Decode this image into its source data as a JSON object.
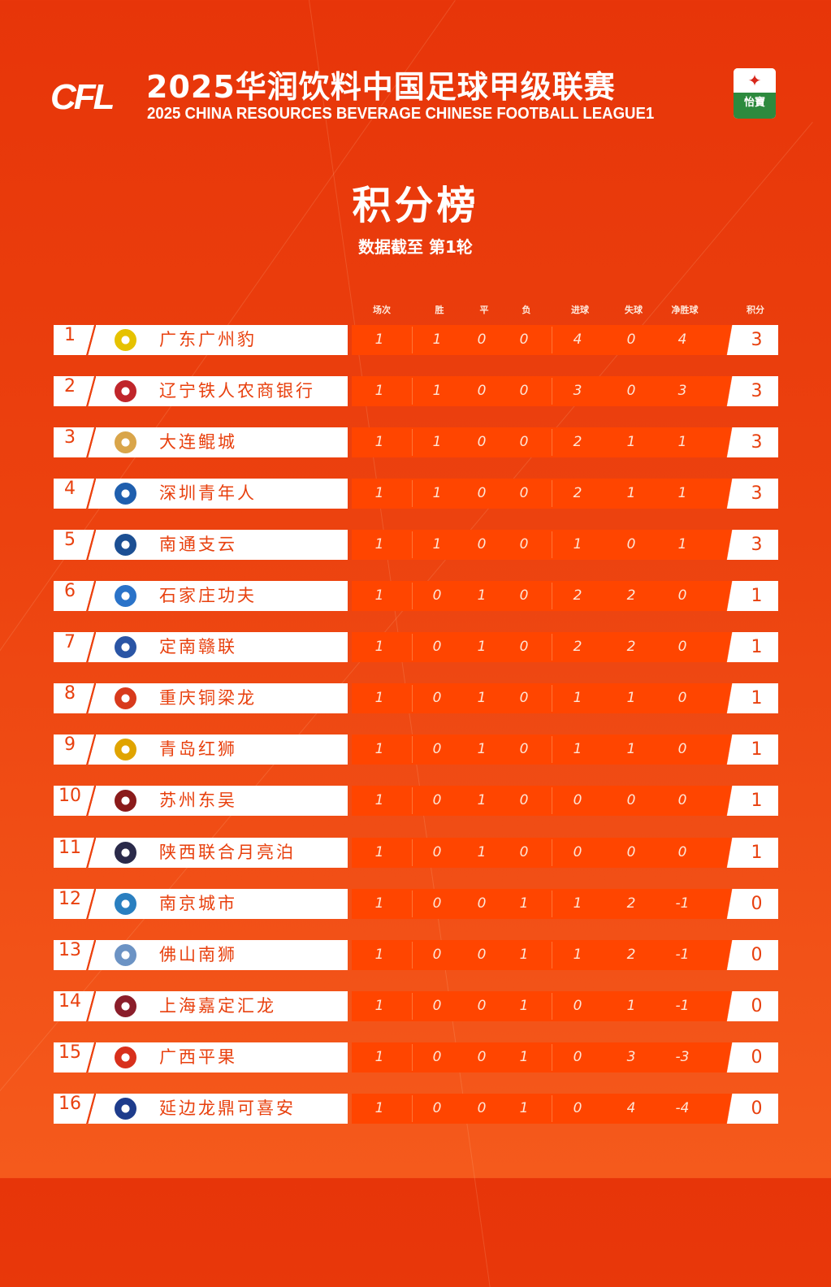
{
  "header": {
    "logo_text": "CFL",
    "title_cn": "2025华润饮料中国足球甲级联赛",
    "title_en": "2025 CHINA RESOURCES BEVERAGE CHINESE FOOTBALL LEAGUE1",
    "sponsor_text": "怡寶"
  },
  "page_title": "积分榜",
  "subtitle": "数据截至 第1轮",
  "columns": [
    "场次",
    "胜",
    "平",
    "负",
    "进球",
    "失球",
    "净胜球",
    "积分"
  ],
  "colors": {
    "background": "#e73509",
    "row_band": "#ff4500",
    "text_accent": "#e8400e"
  },
  "rows": [
    {
      "rank": "1",
      "team": "广东广州豹",
      "crest": "#e6c200",
      "played": "1",
      "w": "1",
      "d": "0",
      "l": "0",
      "gf": "4",
      "ga": "0",
      "gd": "4",
      "pts": "3"
    },
    {
      "rank": "2",
      "team": "辽宁铁人农商银行",
      "crest": "#c0262b",
      "played": "1",
      "w": "1",
      "d": "0",
      "l": "0",
      "gf": "3",
      "ga": "0",
      "gd": "3",
      "pts": "3"
    },
    {
      "rank": "3",
      "team": "大连鲲城",
      "crest": "#d9a54a",
      "played": "1",
      "w": "1",
      "d": "0",
      "l": "0",
      "gf": "2",
      "ga": "1",
      "gd": "1",
      "pts": "3"
    },
    {
      "rank": "4",
      "team": "深圳青年人",
      "crest": "#1f5fae",
      "played": "1",
      "w": "1",
      "d": "0",
      "l": "0",
      "gf": "2",
      "ga": "1",
      "gd": "1",
      "pts": "3"
    },
    {
      "rank": "5",
      "team": "南通支云",
      "crest": "#1c4f93",
      "played": "1",
      "w": "1",
      "d": "0",
      "l": "0",
      "gf": "1",
      "ga": "0",
      "gd": "1",
      "pts": "3"
    },
    {
      "rank": "6",
      "team": "石家庄功夫",
      "crest": "#2a73c9",
      "played": "1",
      "w": "0",
      "d": "1",
      "l": "0",
      "gf": "2",
      "ga": "2",
      "gd": "0",
      "pts": "1"
    },
    {
      "rank": "7",
      "team": "定南赣联",
      "crest": "#2a55a5",
      "played": "1",
      "w": "0",
      "d": "1",
      "l": "0",
      "gf": "2",
      "ga": "2",
      "gd": "0",
      "pts": "1"
    },
    {
      "rank": "8",
      "team": "重庆铜梁龙",
      "crest": "#d83a1c",
      "played": "1",
      "w": "0",
      "d": "1",
      "l": "0",
      "gf": "1",
      "ga": "1",
      "gd": "0",
      "pts": "1"
    },
    {
      "rank": "9",
      "team": "青岛红狮",
      "crest": "#e0a400",
      "played": "1",
      "w": "0",
      "d": "1",
      "l": "0",
      "gf": "1",
      "ga": "1",
      "gd": "0",
      "pts": "1"
    },
    {
      "rank": "10",
      "team": "苏州东吴",
      "crest": "#8a1b1b",
      "played": "1",
      "w": "0",
      "d": "1",
      "l": "0",
      "gf": "0",
      "ga": "0",
      "gd": "0",
      "pts": "1"
    },
    {
      "rank": "11",
      "team": "陕西联合月亮泊",
      "crest": "#2a2a4a",
      "played": "1",
      "w": "0",
      "d": "1",
      "l": "0",
      "gf": "0",
      "ga": "0",
      "gd": "0",
      "pts": "1"
    },
    {
      "rank": "12",
      "team": "南京城市",
      "crest": "#2a7fc0",
      "played": "1",
      "w": "0",
      "d": "0",
      "l": "1",
      "gf": "1",
      "ga": "2",
      "gd": "-1",
      "pts": "0"
    },
    {
      "rank": "13",
      "team": "佛山南狮",
      "crest": "#6c93c4",
      "played": "1",
      "w": "0",
      "d": "0",
      "l": "1",
      "gf": "1",
      "ga": "2",
      "gd": "-1",
      "pts": "0"
    },
    {
      "rank": "14",
      "team": "上海嘉定汇龙",
      "crest": "#8b1e2b",
      "played": "1",
      "w": "0",
      "d": "0",
      "l": "1",
      "gf": "0",
      "ga": "1",
      "gd": "-1",
      "pts": "0"
    },
    {
      "rank": "15",
      "team": "广西平果",
      "crest": "#d8301c",
      "played": "1",
      "w": "0",
      "d": "0",
      "l": "1",
      "gf": "0",
      "ga": "3",
      "gd": "-3",
      "pts": "0"
    },
    {
      "rank": "16",
      "team": "延边龙鼎可喜安",
      "crest": "#1e3c8c",
      "played": "1",
      "w": "0",
      "d": "0",
      "l": "1",
      "gf": "0",
      "ga": "4",
      "gd": "-4",
      "pts": "0"
    }
  ]
}
